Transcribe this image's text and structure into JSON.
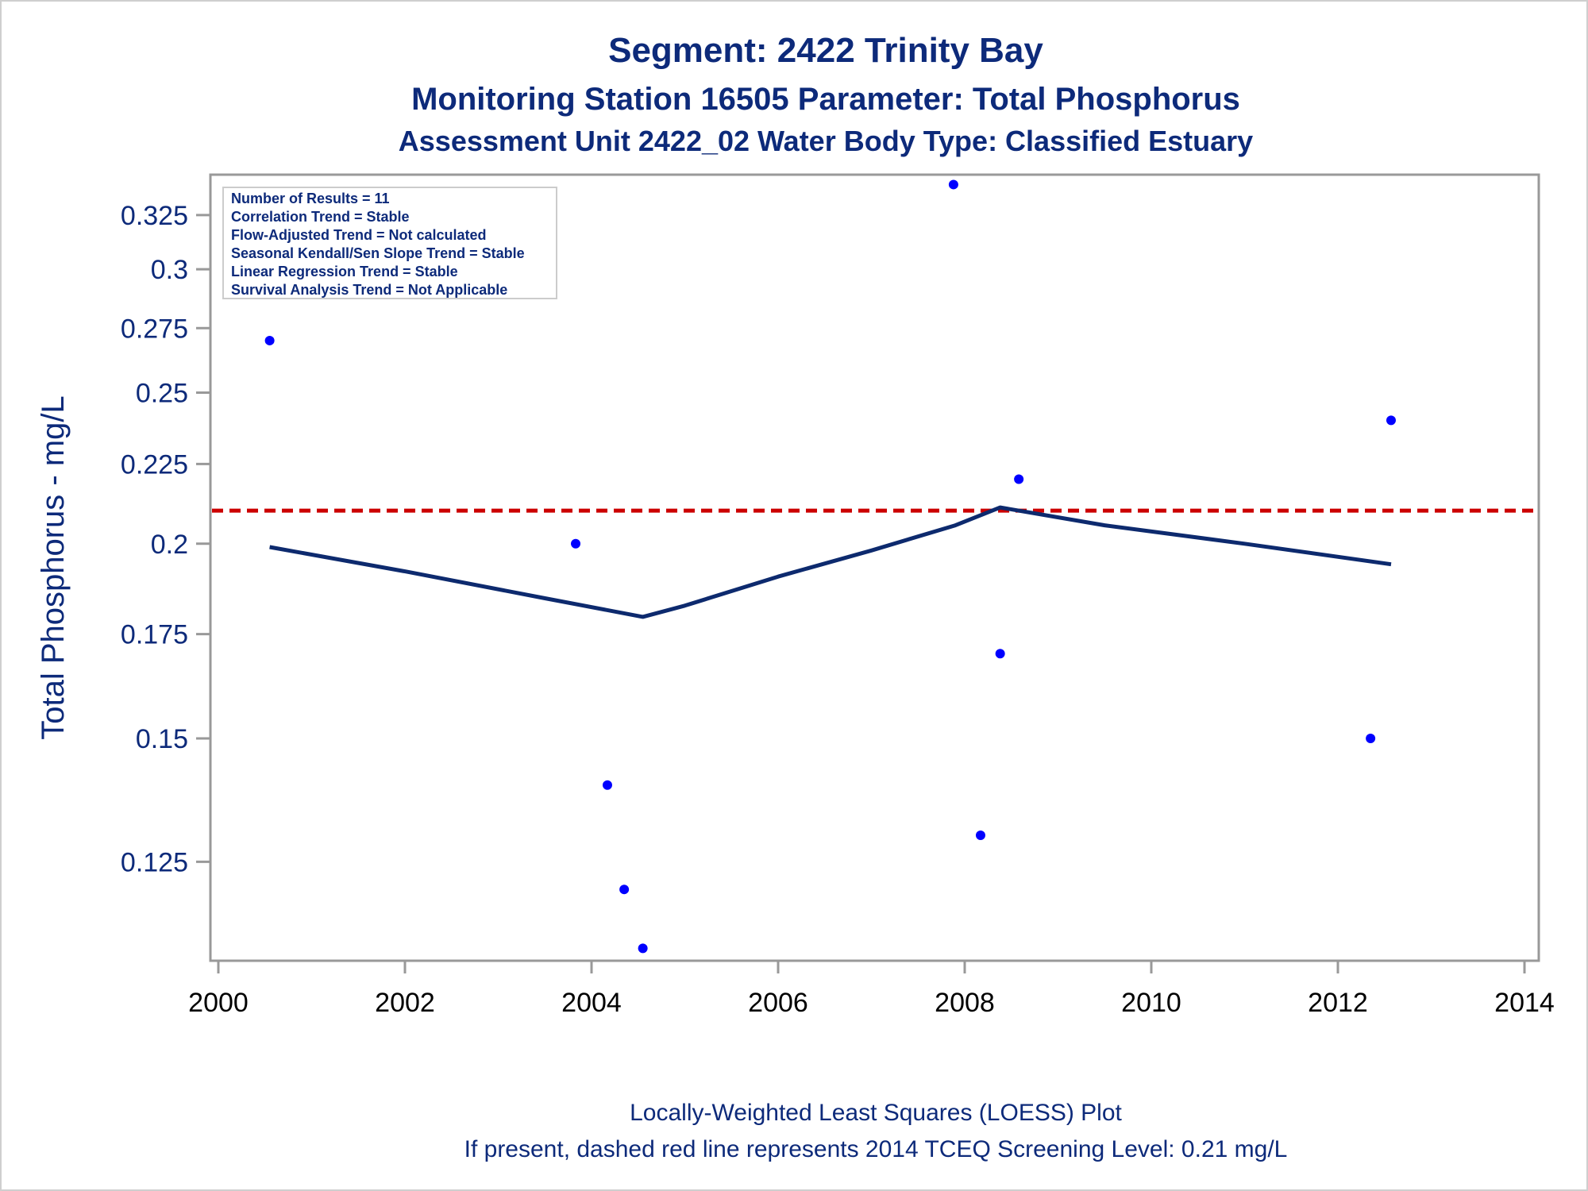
{
  "chart_data": {
    "type": "scatter",
    "title": "Segment: 2422  Trinity Bay",
    "subtitle1": "Monitoring Station 16505 Parameter: Total Phosphorus",
    "subtitle2": "Assessment Unit 2422_02   Water Body Type: Classified Estuary",
    "ylabel": "Total Phosphorus - mg/L",
    "xlabel": "",
    "footnote1": "Locally-Weighted Least Squares (LOESS) Plot",
    "footnote2": "If present, dashed red line represents 2014 TCEQ Screening Level: 0.21 mg/L",
    "y_scale": "log",
    "xlim": [
      2000,
      2014
    ],
    "ylim": [
      0.108,
      0.345
    ],
    "x_ticks": [
      2000,
      2002,
      2004,
      2006,
      2008,
      2010,
      2012,
      2014
    ],
    "y_ticks": [
      0.125,
      0.15,
      0.175,
      0.2,
      0.225,
      0.25,
      0.275,
      0.3,
      0.325
    ],
    "y_tick_labels": [
      "0.125",
      "0.15",
      "0.175",
      "0.2",
      "0.225",
      "0.25",
      "0.275",
      "0.3",
      "0.325"
    ],
    "points": [
      {
        "x": 2000.55,
        "y": 0.27
      },
      {
        "x": 2003.83,
        "y": 0.2
      },
      {
        "x": 2004.17,
        "y": 0.14
      },
      {
        "x": 2004.35,
        "y": 0.12
      },
      {
        "x": 2004.55,
        "y": 0.11
      },
      {
        "x": 2007.88,
        "y": 0.34
      },
      {
        "x": 2008.17,
        "y": 0.13
      },
      {
        "x": 2008.38,
        "y": 0.17
      },
      {
        "x": 2008.58,
        "y": 0.22
      },
      {
        "x": 2012.35,
        "y": 0.15
      },
      {
        "x": 2012.57,
        "y": 0.24
      }
    ],
    "loess": [
      {
        "x": 2000.55,
        "y": 0.199
      },
      {
        "x": 2002.0,
        "y": 0.192
      },
      {
        "x": 2003.5,
        "y": 0.1845
      },
      {
        "x": 2004.55,
        "y": 0.1795
      },
      {
        "x": 2005.0,
        "y": 0.1825
      },
      {
        "x": 2006.0,
        "y": 0.1905
      },
      {
        "x": 2007.0,
        "y": 0.198
      },
      {
        "x": 2007.9,
        "y": 0.2055
      },
      {
        "x": 2008.38,
        "y": 0.211
      },
      {
        "x": 2009.5,
        "y": 0.2055
      },
      {
        "x": 2011.0,
        "y": 0.2
      },
      {
        "x": 2012.57,
        "y": 0.194
      }
    ],
    "screening_level": 0.21,
    "grid": false,
    "legend_placement": "top-left",
    "stats": [
      "Number of Results = 11",
      "Correlation Trend = Stable",
      "Flow-Adjusted Trend = Not calculated",
      "Seasonal Kendall/Sen Slope Trend = Stable",
      "Linear Regression Trend = Stable",
      "Survival Analysis Trend = Not Applicable"
    ],
    "colors": {
      "text": "#0d2a7a",
      "points": "#0000ff",
      "loess": "#0d2a6e",
      "screening": "#cc0000",
      "frame": "#999999"
    }
  }
}
